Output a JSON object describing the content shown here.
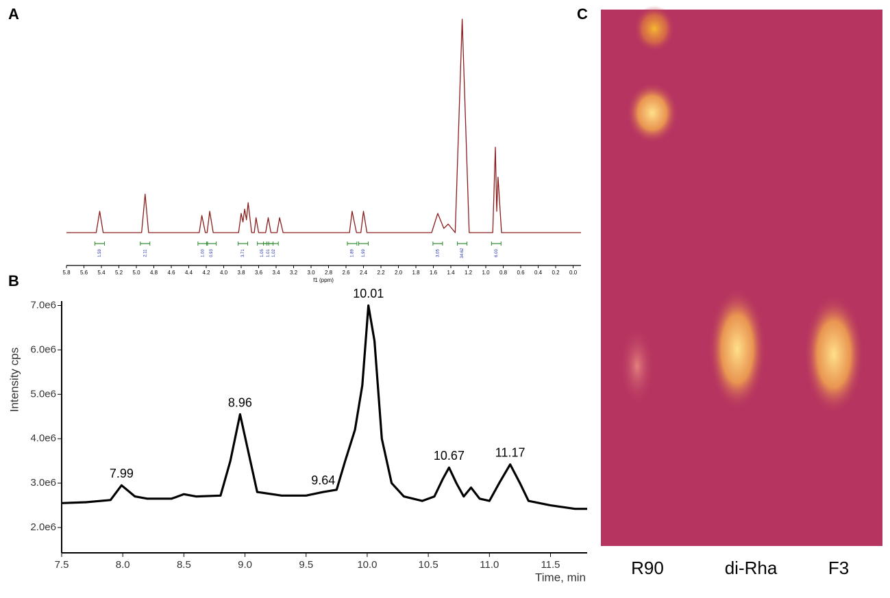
{
  "panels": [
    "A",
    "B",
    "C"
  ],
  "chart_data": [
    {
      "type": "line",
      "x_label": "f1 (ppm)",
      "color": "#8b1a1a",
      "xlim": [
        5.8,
        -0.09
      ],
      "ylim": [
        0,
        100
      ],
      "xticks": [
        5.8,
        5.6,
        5.4,
        5.2,
        {
          "value": 5,
          "label": "5.0"
        },
        4.8,
        4.6,
        4.4,
        4.2,
        {
          "value": 4,
          "label": "4.0"
        },
        3.8,
        3.6,
        3.4,
        3.2,
        {
          "value": 3,
          "label": "3.0"
        },
        2.8,
        2.6,
        2.4,
        2.2,
        {
          "value": 2,
          "label": "2.0"
        },
        1.8,
        1.6,
        1.4,
        1.2,
        {
          "value": 1,
          "label": "1.0"
        },
        0.8,
        0.6,
        0.4,
        0.2,
        {
          "value": 0,
          "label": "0.0"
        }
      ],
      "x": [
        5.8,
        5.46,
        5.42,
        5.38,
        4.94,
        4.9,
        4.86,
        4.28,
        4.25,
        4.21,
        4.19,
        4.16,
        4.12,
        3.83,
        3.8,
        3.78,
        3.76,
        3.74,
        3.72,
        3.68,
        3.65,
        3.63,
        3.6,
        3.52,
        3.49,
        3.46,
        3.39,
        3.36,
        3.32,
        2.56,
        2.53,
        2.48,
        2.43,
        2.4,
        2.36,
        1.62,
        1.55,
        1.48,
        1.43,
        1.35,
        1.27,
        1.19,
        0.92,
        0.89,
        0.875,
        0.86,
        0.82,
        -0.09
      ],
      "values": [
        0,
        0,
        10,
        0,
        0,
        18,
        0,
        0,
        8,
        0,
        0,
        10,
        0,
        0,
        9,
        5,
        11,
        6,
        14,
        0,
        0,
        7,
        0,
        0,
        7,
        0,
        0,
        7,
        0,
        0,
        10,
        0,
        0,
        10,
        0,
        0,
        9,
        2,
        4,
        0,
        100,
        0,
        0,
        40,
        10,
        26,
        0,
        0
      ],
      "integrals": {
        "x": [
          5.42,
          4.9,
          4.24,
          4.14,
          3.78,
          3.56,
          3.49,
          3.43,
          2.53,
          2.4,
          1.55,
          1.27,
          0.88
        ],
        "values": [
          1.59,
          2.11,
          1.0,
          0.93,
          3.71,
          1.05,
          1.01,
          1.02,
          1.89,
          1.99,
          3.05,
          34.62,
          6.0
        ],
        "value_labels": [
          "1.59",
          "2.11",
          "1.00",
          "0.93",
          "3.71",
          "1.05",
          "1.01",
          "1.02",
          "1.89",
          "1.99",
          "3.05",
          "34.62",
          "6.00"
        ]
      }
    },
    {
      "type": "line",
      "x_label": "Time, min",
      "y_label": "Intensity cps",
      "color": "#000000",
      "xlim": [
        7.5,
        11.8
      ],
      "ylim": [
        1430000,
        7100000
      ],
      "xticks": [
        7.5,
        {
          "value": 8,
          "label": "8.0"
        },
        8.5,
        {
          "value": 9,
          "label": "9.0"
        },
        9.5,
        {
          "value": 10,
          "label": "10.0"
        },
        10.5,
        {
          "value": 11,
          "label": "11.0"
        },
        11.5
      ],
      "yticks": [
        {
          "value": 2000000,
          "label": "2.0e6"
        },
        {
          "value": 3000000,
          "label": "3.0e6"
        },
        {
          "value": 4000000,
          "label": "4.0e6"
        },
        {
          "value": 5000000,
          "label": "5.0e6"
        },
        {
          "value": 6000000,
          "label": "6.0e6"
        },
        {
          "value": 7000000,
          "label": "7.0e6"
        }
      ],
      "x": [
        7.5,
        7.7,
        7.9,
        7.99,
        8.1,
        8.2,
        8.4,
        8.5,
        8.6,
        8.8,
        8.88,
        8.96,
        9.02,
        9.1,
        9.3,
        9.5,
        9.64,
        9.75,
        9.82,
        9.9,
        9.96,
        10.01,
        10.06,
        10.12,
        10.2,
        10.3,
        10.45,
        10.55,
        10.62,
        10.67,
        10.73,
        10.79,
        10.85,
        10.92,
        11.0,
        11.08,
        11.17,
        11.25,
        11.32,
        11.5,
        11.7,
        11.8
      ],
      "values": [
        2550000,
        2570000,
        2620000,
        2950000,
        2700000,
        2650000,
        2650000,
        2750000,
        2700000,
        2720000,
        3500000,
        4550000,
        3800000,
        2800000,
        2720000,
        2720000,
        2800000,
        2850000,
        3500000,
        4200000,
        5200000,
        7000000,
        6200000,
        4000000,
        3000000,
        2700000,
        2600000,
        2700000,
        3100000,
        3350000,
        3000000,
        2700000,
        2900000,
        2650000,
        2600000,
        3000000,
        3420000,
        3000000,
        2600000,
        2500000,
        2420000,
        2420000
      ],
      "peak_labels": [
        7.99,
        8.96,
        9.64,
        10.01,
        10.67,
        11.17
      ]
    }
  ],
  "tlc": {
    "lanes": [
      "R90",
      "di-Rha",
      "F3"
    ]
  }
}
